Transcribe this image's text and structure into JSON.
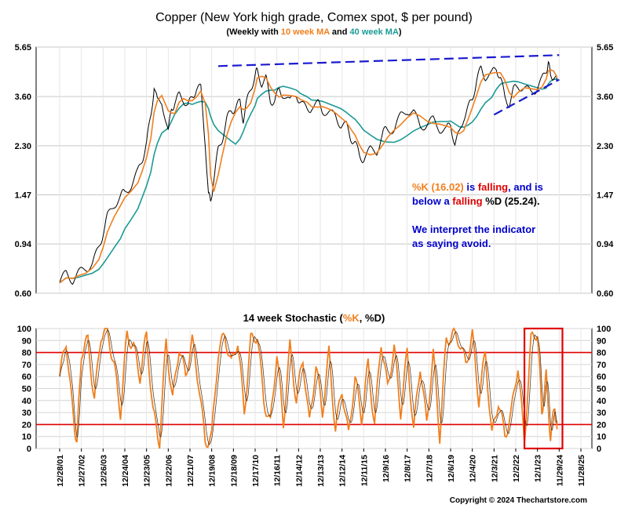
{
  "title": "Copper (New York high grade, Comex spot, $ per pound)",
  "subtitle": {
    "prefix": "(Weekly with ",
    "ma10": "10 week MA",
    "mid": " and ",
    "ma40": "40 week MA",
    "suffix": ")"
  },
  "annotation": {
    "line1": {
      "a": "%K (16.02)",
      "b": " is ",
      "c": "falling",
      "d": ", and is"
    },
    "line2": {
      "a": "below a ",
      "b": "falling",
      "c": " %D (25.24)."
    },
    "line3": "We interpret the indicator",
    "line4": "as saying avoid."
  },
  "stoch_title": {
    "prefix": "14 week Stochastic (",
    "k": "%K",
    "mid": ", %D",
    "suffix": ")"
  },
  "copyright": "Copyright © 2024 Thechartstore.com",
  "colors": {
    "price": "#000000",
    "ma10": "#f07f1e",
    "ma40": "#1b9a94",
    "trendline": "#1a1ad0",
    "stoch": "#f07f1e",
    "band": "#e00000",
    "text_blue": "#0000cc",
    "text_red": "#e00000",
    "text_orange": "#f07f1e"
  },
  "chart_data": [
    {
      "type": "line",
      "scale": "log",
      "yticks": [
        "0.60",
        "0.94",
        "1.47",
        "2.30",
        "3.60",
        "5.65"
      ],
      "ytick_values": [
        0.6,
        0.94,
        1.47,
        2.3,
        3.6,
        5.65
      ],
      "ylim": [
        0.6,
        5.65
      ],
      "x_labels": [
        "12/28/01",
        "12/27/02",
        "12/26/03",
        "12/24/04",
        "12/23/05",
        "12/22/06",
        "12/21/07",
        "12/19/08",
        "12/18/09",
        "12/17/10",
        "12/16/11",
        "12/14/12",
        "12/13/13",
        "12/12/14",
        "12/11/15",
        "12/9/16",
        "12/8/17",
        "12/7/18",
        "12/6/19",
        "12/4/20",
        "12/3/21",
        "12/2/22",
        "12/1/23",
        "11/29/24",
        "11/28/25"
      ],
      "x_years": [
        2002,
        2003,
        2004,
        2005,
        2006,
        2007,
        2008,
        2009,
        2010,
        2011,
        2012,
        2013,
        2014,
        2015,
        2016,
        2017,
        2018,
        2019,
        2020,
        2021,
        2022,
        2023,
        2024,
        2025,
        2026
      ],
      "series": [
        {
          "name": "",
          "key": "price",
          "x": [
            2002.0,
            2002.3,
            2002.6,
            2002.9,
            2003.2,
            2003.5,
            2003.8,
            2004.0,
            2004.2,
            2004.5,
            2004.8,
            2005.0,
            2005.3,
            2005.6,
            2005.8,
            2006.0,
            2006.2,
            2006.35,
            2006.5,
            2006.7,
            2007.0,
            2007.15,
            2007.3,
            2007.5,
            2007.7,
            2007.9,
            2008.1,
            2008.3,
            2008.5,
            2008.7,
            2008.85,
            2008.95,
            2009.1,
            2009.3,
            2009.5,
            2009.7,
            2009.9,
            2010.1,
            2010.3,
            2010.45,
            2010.6,
            2010.8,
            2011.0,
            2011.1,
            2011.3,
            2011.5,
            2011.7,
            2011.9,
            2012.1,
            2012.3,
            2012.6,
            2012.9,
            2013.1,
            2013.4,
            2013.6,
            2013.9,
            2014.1,
            2014.4,
            2014.7,
            2014.95,
            2015.2,
            2015.4,
            2015.6,
            2015.8,
            2016.0,
            2016.3,
            2016.6,
            2016.9,
            2017.1,
            2017.4,
            2017.7,
            2018.0,
            2018.3,
            2018.6,
            2018.9,
            2019.2,
            2019.5,
            2019.8,
            2020.0,
            2020.2,
            2020.4,
            2020.6,
            2020.8,
            2021.0,
            2021.2,
            2021.4,
            2021.6,
            2021.9,
            2022.1,
            2022.3,
            2022.5,
            2022.7,
            2022.9,
            2023.1,
            2023.4,
            2023.7,
            2023.95,
            2024.2,
            2024.4,
            2024.5,
            2024.6,
            2024.75,
            2024.9
          ],
          "values": [
            0.66,
            0.72,
            0.68,
            0.72,
            0.76,
            0.78,
            0.9,
            1.05,
            1.2,
            1.35,
            1.45,
            1.5,
            1.62,
            1.8,
            2.05,
            2.35,
            3.0,
            4.0,
            3.4,
            3.5,
            2.6,
            3.2,
            3.45,
            3.6,
            3.55,
            3.25,
            3.6,
            3.9,
            3.85,
            2.4,
            1.45,
            1.4,
            1.7,
            2.2,
            2.5,
            2.9,
            3.2,
            3.25,
            3.4,
            2.95,
            3.35,
            3.9,
            4.4,
            4.5,
            4.1,
            4.2,
            3.5,
            3.45,
            3.8,
            3.7,
            3.4,
            3.7,
            3.4,
            3.15,
            3.3,
            3.35,
            3.2,
            3.1,
            3.0,
            2.8,
            2.75,
            2.5,
            2.35,
            2.1,
            2.05,
            2.2,
            2.2,
            2.6,
            2.65,
            2.7,
            3.0,
            3.2,
            3.1,
            2.75,
            2.8,
            2.9,
            2.7,
            2.65,
            2.8,
            2.35,
            2.55,
            3.0,
            3.2,
            3.55,
            4.2,
            4.6,
            4.35,
            4.4,
            4.7,
            4.3,
            3.5,
            3.4,
            3.8,
            4.0,
            3.9,
            3.7,
            3.9,
            4.15,
            4.6,
            4.9,
            4.3,
            4.4,
            4.15
          ]
        },
        {
          "name": "10 week MA",
          "key": "ma10",
          "window": 3
        },
        {
          "name": "40 week MA",
          "key": "ma40",
          "window": 9
        }
      ],
      "trendlines": [
        {
          "x": [
            2009.3,
            2025.0
          ],
          "y": [
            4.75,
            5.25
          ]
        },
        {
          "x": [
            2022.0,
            2025.0
          ],
          "y": [
            3.05,
            4.2
          ]
        }
      ]
    },
    {
      "type": "line",
      "title": "14 week Stochastic (%K, %D)",
      "yticks": [
        "0",
        "10",
        "20",
        "30",
        "40",
        "50",
        "60",
        "70",
        "80",
        "90",
        "100"
      ],
      "ylim": [
        0,
        100
      ],
      "bands": [
        20,
        80
      ],
      "highlight_x": [
        2023.4,
        2025.15
      ],
      "series": [
        {
          "name": "%K",
          "key": "stoch",
          "x": [
            2002.0,
            2002.3,
            2002.6,
            2002.8,
            2003.0,
            2003.3,
            2003.6,
            2003.9,
            2004.2,
            2004.5,
            2004.8,
            2005.1,
            2005.4,
            2005.7,
            2006.0,
            2006.3,
            2006.6,
            2006.9,
            2007.2,
            2007.5,
            2007.8,
            2008.1,
            2008.4,
            2008.7,
            2009.0,
            2009.3,
            2009.6,
            2009.9,
            2010.2,
            2010.5,
            2010.8,
            2011.1,
            2011.4,
            2011.7,
            2012.0,
            2012.3,
            2012.6,
            2012.9,
            2013.2,
            2013.5,
            2013.8,
            2014.1,
            2014.4,
            2014.7,
            2015.0,
            2015.3,
            2015.6,
            2015.9,
            2016.2,
            2016.5,
            2016.8,
            2017.1,
            2017.4,
            2017.7,
            2018.0,
            2018.3,
            2018.6,
            2018.9,
            2019.2,
            2019.5,
            2019.8,
            2020.1,
            2020.4,
            2020.7,
            2021.0,
            2021.3,
            2021.6,
            2021.9,
            2022.2,
            2022.5,
            2022.8,
            2023.1,
            2023.4,
            2023.7,
            2024.0,
            2024.2,
            2024.4,
            2024.6,
            2024.8,
            2024.9
          ],
          "values": [
            60,
            90,
            30,
            5,
            80,
            90,
            40,
            95,
            98,
            70,
            30,
            95,
            85,
            60,
            95,
            30,
            5,
            90,
            40,
            85,
            60,
            90,
            55,
            5,
            10,
            80,
            95,
            70,
            90,
            30,
            90,
            95,
            40,
            20,
            80,
            20,
            85,
            40,
            75,
            20,
            70,
            30,
            80,
            15,
            50,
            10,
            60,
            25,
            70,
            20,
            90,
            50,
            85,
            30,
            80,
            15,
            70,
            20,
            80,
            10,
            90,
            95,
            90,
            70,
            95,
            40,
            80,
            10,
            40,
            10,
            30,
            70,
            5,
            90,
            98,
            30,
            60,
            10,
            35,
            16
          ]
        }
      ]
    }
  ]
}
